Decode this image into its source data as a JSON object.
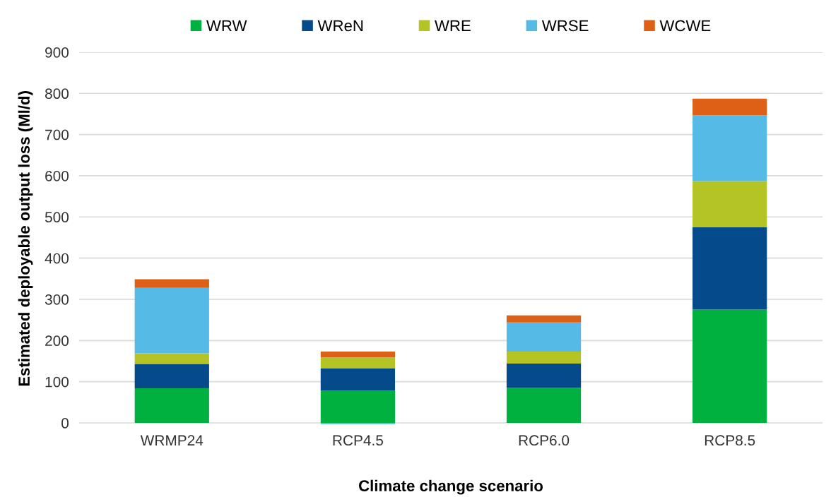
{
  "chart_data": {
    "type": "bar",
    "stacked": true,
    "xlabel": "Climate change scenario",
    "ylabel": "Estimated deployable output loss (Ml/d)",
    "categories": [
      "WRMP24",
      "RCP4.5",
      "RCP6.0",
      "RCP8.5"
    ],
    "series": [
      {
        "name": "WRW",
        "color": "#00b140",
        "values": [
          84,
          78,
          85,
          275
        ]
      },
      {
        "name": "WReN",
        "color": "#054a8a",
        "values": [
          59,
          54,
          59,
          200
        ]
      },
      {
        "name": "WRE",
        "color": "#b4c424",
        "values": [
          26,
          27,
          29,
          112
        ]
      },
      {
        "name": "WRSE",
        "color": "#55bbe6",
        "values": [
          159,
          -3,
          71,
          160
        ]
      },
      {
        "name": "WCWE",
        "color": "#dd6016",
        "values": [
          21,
          14,
          17,
          40
        ]
      }
    ],
    "ylim": [
      -5,
      900
    ],
    "yticks": [
      0,
      100,
      200,
      300,
      400,
      500,
      600,
      700,
      800,
      900
    ],
    "grid": "y",
    "legend": "top"
  }
}
